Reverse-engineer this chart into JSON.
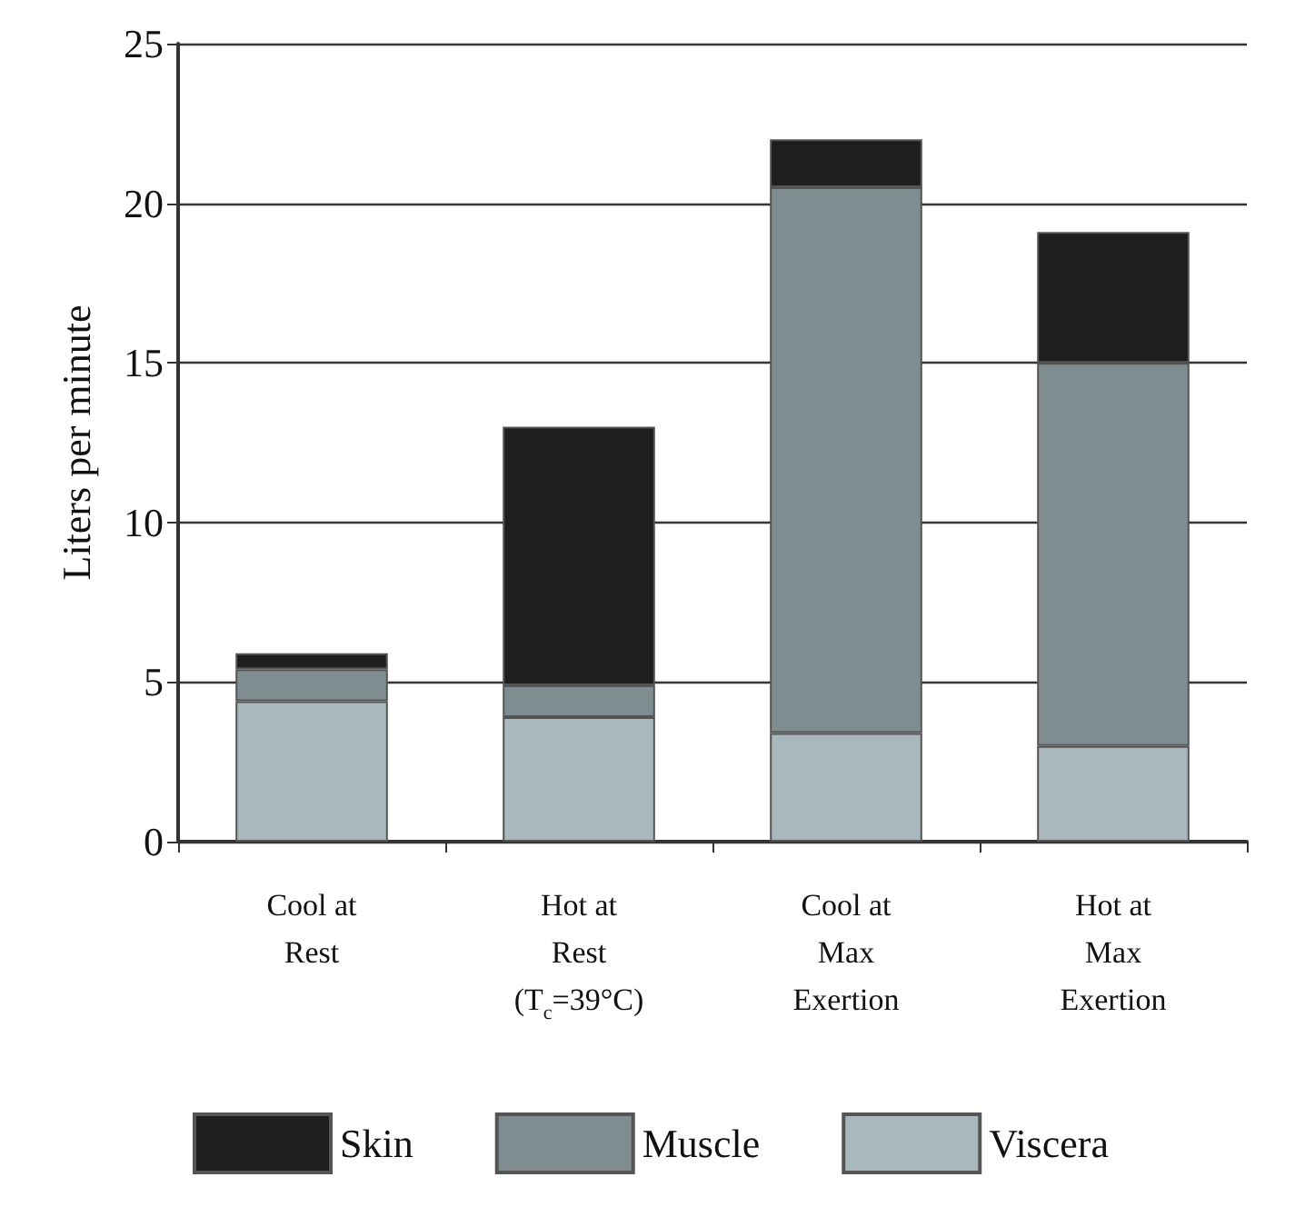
{
  "chart_data": {
    "type": "bar",
    "stacked": true,
    "ylabel": "Liters per minute",
    "categories": [
      "Cool at\nRest",
      "Hot at\nRest\n(T$_{c}$=39°C)",
      "Cool at\nMax\nExertion",
      "Hot at\nMax\nExertion"
    ],
    "series": [
      {
        "name": "Viscera",
        "color": "#a9b8bd",
        "values": [
          4.4,
          3.9,
          3.4,
          3.0
        ]
      },
      {
        "name": "Muscle",
        "color": "#7f8c90",
        "values": [
          1.0,
          1.0,
          17.1,
          12.0
        ]
      },
      {
        "name": "Skin",
        "color": "#1e1e1e",
        "values": [
          0.5,
          8.1,
          1.5,
          4.1
        ]
      }
    ],
    "ylim": [
      0,
      25
    ],
    "yticks": [
      0,
      5,
      10,
      15,
      20,
      25
    ],
    "grid": "y",
    "legend": "bottom"
  }
}
